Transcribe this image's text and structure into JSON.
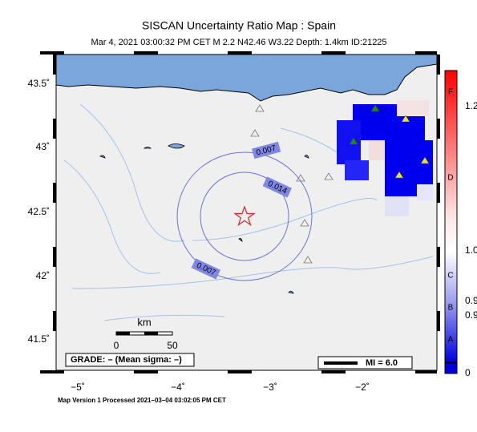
{
  "title": "SISCAN Uncertainty Ratio Map : Spain",
  "subtitle": "Mar  4, 2021 03:00:32 PM CET   M 2.2   N42.46 W3.22   Depth: 1.4km   ID:21225",
  "latitude_labels": [
    "43.5˚",
    "43˚",
    "42.5˚",
    "42˚",
    "41.5˚"
  ],
  "longitude_labels": [
    "−5˚",
    "−4˚",
    "−3˚",
    "−2˚"
  ],
  "contour_labels": [
    "0.007",
    "0.014",
    "0.007"
  ],
  "scale_bar": {
    "unit": "km",
    "labels": [
      "0",
      "50"
    ]
  },
  "grade": "GRADE: – (Mean sigma: –)",
  "magnitude_legend": "MI = 6.0",
  "colorbar": {
    "grades": [
      "F",
      "D",
      "C",
      "B",
      "A"
    ],
    "values": [
      "1.2",
      "1.0",
      "0.9",
      "0.9",
      "0"
    ]
  },
  "footer": "Map Version 1 Processed 2021–03–04 03:02:05 PM CET"
}
